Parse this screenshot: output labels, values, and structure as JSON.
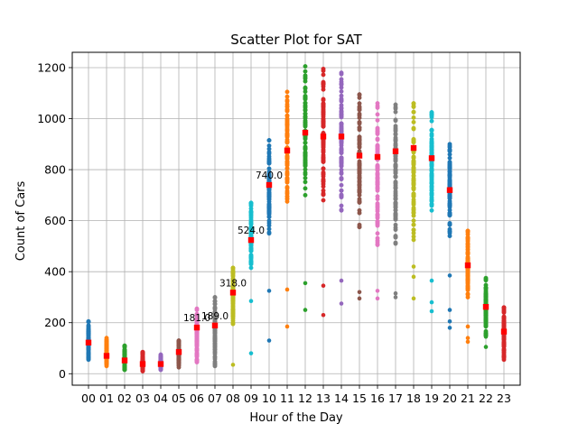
{
  "chart_data": {
    "type": "scatter",
    "title": "Scatter Plot for SAT",
    "xlabel": "Hour of the Day",
    "ylabel": "Count of Cars",
    "categories": [
      "00",
      "01",
      "02",
      "03",
      "04",
      "05",
      "06",
      "07",
      "08",
      "09",
      "10",
      "11",
      "12",
      "13",
      "14",
      "15",
      "16",
      "17",
      "18",
      "19",
      "20",
      "21",
      "22",
      "23"
    ],
    "ylim": [
      -45,
      1260
    ],
    "yticks": [
      0,
      200,
      400,
      600,
      800,
      1000,
      1200
    ],
    "grid": true,
    "series_colors": [
      "#1f77b4",
      "#ff7f0e",
      "#2ca02c",
      "#d62728",
      "#9467bd",
      "#8c564b",
      "#e377c2",
      "#7f7f7f",
      "#bcbd22",
      "#17becf"
    ],
    "mean_color": "#ff0000",
    "columns": [
      {
        "hour": "00",
        "mean": 122,
        "min": 55,
        "max": 205,
        "outliers": []
      },
      {
        "hour": "01",
        "mean": 70,
        "min": 30,
        "max": 140,
        "outliers": []
      },
      {
        "hour": "02",
        "mean": 52,
        "min": 15,
        "max": 110,
        "outliers": []
      },
      {
        "hour": "03",
        "mean": 38,
        "min": 10,
        "max": 85,
        "outliers": []
      },
      {
        "hour": "04",
        "mean": 38,
        "min": 15,
        "max": 75,
        "outliers": []
      },
      {
        "hour": "05",
        "mean": 85,
        "min": 25,
        "max": 130,
        "outliers": []
      },
      {
        "hour": "06",
        "mean": 181,
        "min": 45,
        "max": 255,
        "outliers": []
      },
      {
        "hour": "07",
        "mean": 189,
        "min": 30,
        "max": 300,
        "outliers": [
          30
        ]
      },
      {
        "hour": "08",
        "mean": 318,
        "min": 195,
        "max": 415,
        "outliers": [
          35
        ]
      },
      {
        "hour": "09",
        "mean": 524,
        "min": 415,
        "max": 670,
        "outliers": [
          80,
          285
        ]
      },
      {
        "hour": "10",
        "mean": 740,
        "min": 550,
        "max": 915,
        "outliers": [
          130,
          325
        ]
      },
      {
        "hour": "11",
        "mean": 875,
        "min": 675,
        "max": 1105,
        "outliers": [
          185,
          330
        ]
      },
      {
        "hour": "12",
        "mean": 945,
        "min": 700,
        "max": 1205,
        "outliers": [
          250,
          355
        ]
      },
      {
        "hour": "13",
        "mean": 930,
        "min": 680,
        "max": 1195,
        "outliers": [
          230,
          345
        ]
      },
      {
        "hour": "14",
        "mean": 930,
        "min": 640,
        "max": 1180,
        "outliers": [
          275,
          365
        ]
      },
      {
        "hour": "15",
        "mean": 855,
        "min": 575,
        "max": 1095,
        "outliers": [
          295,
          320
        ]
      },
      {
        "hour": "16",
        "mean": 850,
        "min": 505,
        "max": 1060,
        "outliers": [
          295,
          325
        ]
      },
      {
        "hour": "17",
        "mean": 872,
        "min": 510,
        "max": 1055,
        "outliers": [
          300,
          315
        ]
      },
      {
        "hour": "18",
        "mean": 885,
        "min": 525,
        "max": 1060,
        "outliers": [
          295,
          380,
          420
        ]
      },
      {
        "hour": "19",
        "mean": 845,
        "min": 640,
        "max": 1025,
        "outliers": [
          245,
          280,
          365
        ]
      },
      {
        "hour": "20",
        "mean": 720,
        "min": 540,
        "max": 900,
        "outliers": [
          180,
          205,
          250,
          385
        ]
      },
      {
        "hour": "21",
        "mean": 425,
        "min": 300,
        "max": 560,
        "outliers": [
          125,
          140,
          185
        ]
      },
      {
        "hour": "22",
        "mean": 262,
        "min": 150,
        "max": 375,
        "outliers": [
          105,
          145
        ]
      },
      {
        "hour": "23",
        "mean": 165,
        "min": 55,
        "max": 260,
        "outliers": []
      }
    ],
    "annotations": [
      {
        "hour": "06",
        "value": 181,
        "text": "181.0"
      },
      {
        "hour": "07",
        "value": 189,
        "text": "189.0"
      },
      {
        "hour": "08",
        "value": 318,
        "text": "318.0"
      },
      {
        "hour": "09",
        "value": 524,
        "text": "524.0"
      },
      {
        "hour": "10",
        "value": 740,
        "text": "740.0"
      }
    ]
  }
}
